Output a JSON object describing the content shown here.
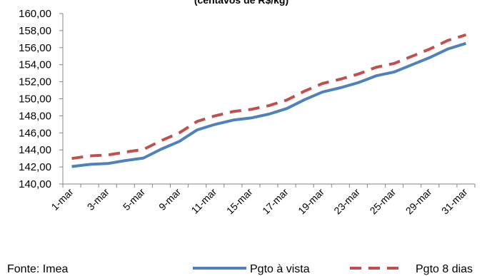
{
  "source_note": "Fonte: Imea",
  "chart_data": {
    "type": "line",
    "title": "(centavos de R$/kg)",
    "xlabel": "",
    "ylabel": "",
    "ylim": [
      140,
      160
    ],
    "ytick_step": 2,
    "ytick_labels": [
      "140,00",
      "142,00",
      "144,00",
      "146,00",
      "148,00",
      "150,00",
      "152,00",
      "154,00",
      "156,00",
      "158,00",
      "160,00"
    ],
    "categories": [
      "1-mar",
      "3-mar",
      "5-mar",
      "9-mar",
      "11-mar",
      "15-mar",
      "17-mar",
      "19-mar",
      "23-mar",
      "25-mar",
      "29-mar",
      "31-mar"
    ],
    "x": [
      "1-mar",
      "2-mar",
      "3-mar",
      "4-mar",
      "5-mar",
      "8-mar",
      "9-mar",
      "10-mar",
      "11-mar",
      "12-mar",
      "15-mar",
      "16-mar",
      "17-mar",
      "18-mar",
      "19-mar",
      "22-mar",
      "23-mar",
      "24-mar",
      "25-mar",
      "26-mar",
      "29-mar",
      "30-mar",
      "31-mar"
    ],
    "series": [
      {
        "name": "Pgto à vista",
        "color": "#4f81bd",
        "dash": "solid",
        "values": [
          142.05,
          142.3,
          142.4,
          142.75,
          143.05,
          144.1,
          145.0,
          146.35,
          147.0,
          147.5,
          147.75,
          148.2,
          148.85,
          149.9,
          150.8,
          151.3,
          151.9,
          152.7,
          153.15,
          154.0,
          154.85,
          155.85,
          156.5
        ]
      },
      {
        "name": "Pgto 8 dias",
        "color": "#c0504d",
        "dash": "dashed",
        "values": [
          143.0,
          143.3,
          143.4,
          143.75,
          144.05,
          145.1,
          146.0,
          147.35,
          148.0,
          148.5,
          148.75,
          149.2,
          149.85,
          150.9,
          151.8,
          152.3,
          152.9,
          153.7,
          154.15,
          155.0,
          155.85,
          156.85,
          157.5
        ]
      }
    ],
    "legend_position": "bottom-right",
    "grid": false
  }
}
